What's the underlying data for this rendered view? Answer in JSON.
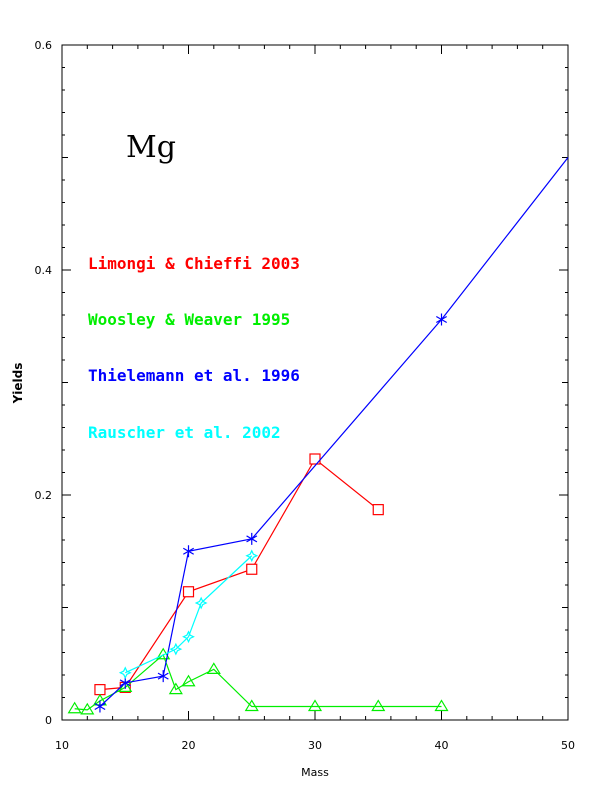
{
  "chart_data": {
    "type": "line",
    "title": "",
    "annotation": "Mg",
    "xlabel": "Mass",
    "ylabel": "Yields",
    "xlim": [
      10,
      50
    ],
    "ylim": [
      0,
      0.6
    ],
    "xticks": [
      10,
      20,
      30,
      40,
      50
    ],
    "yticks": [
      0,
      0.2,
      0.4,
      0.6
    ],
    "xtick_labels": [
      "10",
      "20",
      "30",
      "40",
      "50"
    ],
    "ytick_labels": [
      "0",
      "0.2",
      "0.4",
      "0.6"
    ],
    "legend_placement": "upper-left, inside plot",
    "grid": false,
    "series": [
      {
        "name": "Limongi & Chieffi 2003",
        "color": "#ff0000",
        "marker": "square",
        "x": [
          13,
          15,
          20,
          25,
          30,
          35
        ],
        "y": [
          0.027,
          0.029,
          0.114,
          0.134,
          0.232,
          0.187
        ]
      },
      {
        "name": "Woosley & Weaver 1995",
        "color": "#00ee00",
        "marker": "triangle",
        "x": [
          11,
          12,
          13,
          15,
          18,
          19,
          20,
          22,
          25,
          30,
          35,
          40
        ],
        "y": [
          0.01,
          0.009,
          0.017,
          0.029,
          0.058,
          0.027,
          0.034,
          0.045,
          0.012,
          0.012,
          0.012,
          0.012
        ]
      },
      {
        "name": "Thielemann et al. 1996",
        "color": "#0000ff",
        "marker": "asterisk",
        "x": [
          13,
          15,
          18,
          20,
          25,
          40,
          50
        ],
        "y": [
          0.012,
          0.033,
          0.039,
          0.15,
          0.161,
          0.356,
          0.5
        ]
      },
      {
        "name": "Rauscher et al. 2002",
        "color": "#00ffff",
        "marker": "star",
        "x": [
          15,
          19,
          20,
          21,
          25
        ],
        "y": [
          0.042,
          0.063,
          0.074,
          0.104,
          0.146
        ]
      }
    ]
  }
}
